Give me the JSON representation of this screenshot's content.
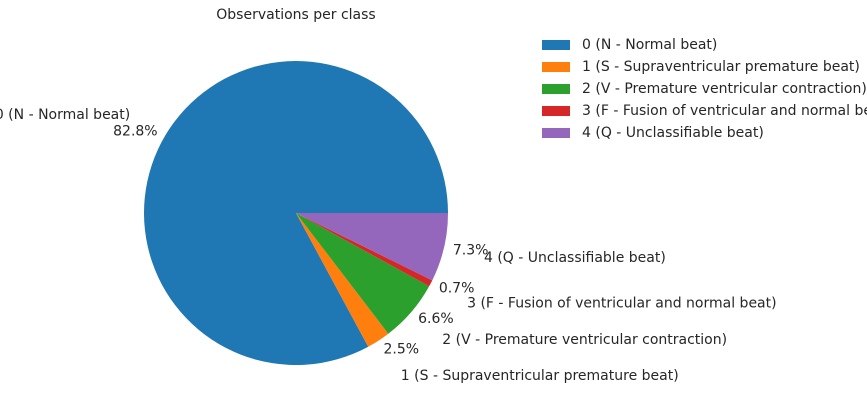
{
  "chart_data": {
    "type": "pie",
    "title": "Observations per class",
    "categories": [
      "0 (N - Normal beat)",
      "1 (S - Supraventricular premature beat)",
      "2 (V - Premature ventricular contraction)",
      "3 (F - Fusion of ventricular and normal beat)",
      "4 (Q - Unclassifiable beat)"
    ],
    "values": [
      82.8,
      2.5,
      6.6,
      0.7,
      7.3
    ],
    "percent_labels": [
      "82.8%",
      "2.5%",
      "6.6%",
      "0.7%",
      "7.3%"
    ],
    "colors": [
      "#1f77b4",
      "#ff7f0e",
      "#2ca02c",
      "#d62728",
      "#9467bd"
    ],
    "legend": {
      "placement": "top-right"
    }
  }
}
